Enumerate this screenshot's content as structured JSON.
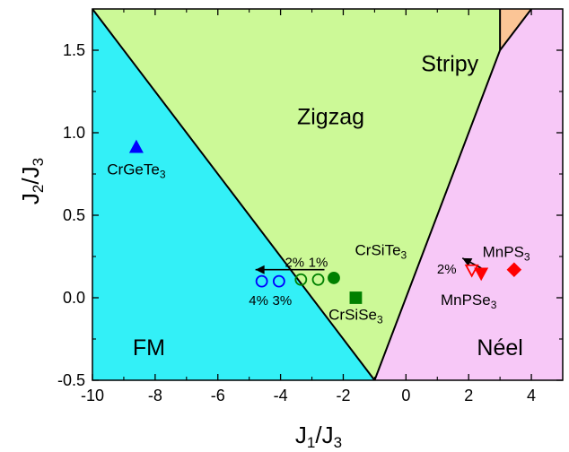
{
  "chart_data": {
    "type": "scatter",
    "xlabel": "J1/J3",
    "ylabel": "J2/J3",
    "xlim": [
      -10,
      5
    ],
    "ylim": [
      -0.5,
      1.75
    ],
    "x_ticks": [
      "-10",
      "-8",
      "-6",
      "-4",
      "-2",
      "0",
      "2",
      "4"
    ],
    "y_ticks": [
      "-0.5",
      "0.0",
      "0.5",
      "1.0",
      "1.5"
    ],
    "regions": [
      {
        "name": "FM",
        "color": "#33f0f7",
        "polygon": [
          [
            -10,
            1.75
          ],
          [
            -10,
            -0.5
          ],
          [
            -1,
            -0.5
          ]
        ]
      },
      {
        "name": "Zigzag",
        "color": "#ccf997",
        "polygon": [
          [
            -10,
            1.75
          ],
          [
            -1,
            -0.5
          ],
          [
            3,
            1.5
          ],
          [
            3,
            1.75
          ]
        ]
      },
      {
        "name": "Néel",
        "color": "#f7c8f7",
        "polygon": [
          [
            -1,
            -0.5
          ],
          [
            5,
            -0.5
          ],
          [
            5,
            1.75
          ],
          [
            4,
            1.75
          ],
          [
            3,
            1.5
          ]
        ]
      },
      {
        "name": "Stripy",
        "color": "#fbc596",
        "polygon": [
          [
            3,
            1.5
          ],
          [
            3,
            1.75
          ],
          [
            4,
            1.75
          ]
        ]
      }
    ],
    "boundaries": [
      [
        [
          -10,
          1.75
        ],
        [
          -1,
          -0.5
        ]
      ],
      [
        [
          -1,
          -0.5
        ],
        [
          3,
          1.5
        ]
      ],
      [
        [
          3,
          1.5
        ],
        [
          3,
          1.75
        ]
      ],
      [
        [
          3,
          1.5
        ],
        [
          4,
          1.75
        ]
      ]
    ],
    "points": [
      {
        "x": -8.6,
        "y": 0.91,
        "marker": "triangle-up",
        "color": "#0000ff",
        "filled": true
      },
      {
        "x": -2.3,
        "y": 0.12,
        "marker": "circle",
        "color": "#008000",
        "filled": true
      },
      {
        "x": -2.8,
        "y": 0.11,
        "marker": "circle",
        "color": "#008000",
        "filled": false
      },
      {
        "x": -3.35,
        "y": 0.11,
        "marker": "circle",
        "color": "#008000",
        "filled": false
      },
      {
        "x": -4.05,
        "y": 0.1,
        "marker": "circle",
        "color": "#0000ff",
        "filled": false
      },
      {
        "x": -4.6,
        "y": 0.1,
        "marker": "circle",
        "color": "#0000ff",
        "filled": false
      },
      {
        "x": -1.6,
        "y": 0.0,
        "marker": "square",
        "color": "#008000",
        "filled": true
      },
      {
        "x": 3.45,
        "y": 0.17,
        "marker": "diamond",
        "color": "#ff0000",
        "filled": true
      },
      {
        "x": 2.4,
        "y": 0.15,
        "marker": "triangle-down",
        "color": "#ff0000",
        "filled": true
      },
      {
        "x": 2.1,
        "y": 0.17,
        "marker": "triangle-down",
        "color": "#ff0000",
        "filled": false
      }
    ],
    "arrows": [
      {
        "from": [
          -2.6,
          0.17
        ],
        "to": [
          -4.8,
          0.17
        ]
      },
      {
        "from": [
          2.4,
          0.18
        ],
        "to": [
          1.8,
          0.24
        ]
      }
    ],
    "region_labels": [
      {
        "text": "FM",
        "x": -8.2,
        "y": -0.3
      },
      {
        "text": "Zigzag",
        "x": -2.4,
        "y": 1.1
      },
      {
        "text": "Néel",
        "x": 3.0,
        "y": -0.3
      },
      {
        "text": "Stripy",
        "x": 1.4,
        "y": 1.42
      }
    ],
    "point_labels": [
      {
        "text": "CrGeTe3",
        "x": -8.6,
        "y": 0.78
      },
      {
        "text": "CrSiTe3",
        "x": -0.8,
        "y": 0.29
      },
      {
        "text": "CrSiSe3",
        "x": -1.6,
        "y": -0.1
      },
      {
        "text": "MnPS3",
        "x": 3.2,
        "y": 0.28
      },
      {
        "text": "MnPSe3",
        "x": 2.0,
        "y": -0.01
      }
    ],
    "percent_labels": [
      {
        "text": "2%",
        "x": -3.55,
        "y": 0.22
      },
      {
        "text": "1%",
        "x": -2.8,
        "y": 0.22
      },
      {
        "text": "4%",
        "x": -4.7,
        "y": -0.01
      },
      {
        "text": "3%",
        "x": -3.95,
        "y": -0.01
      },
      {
        "text": "2%",
        "x": 1.3,
        "y": 0.18
      }
    ]
  }
}
